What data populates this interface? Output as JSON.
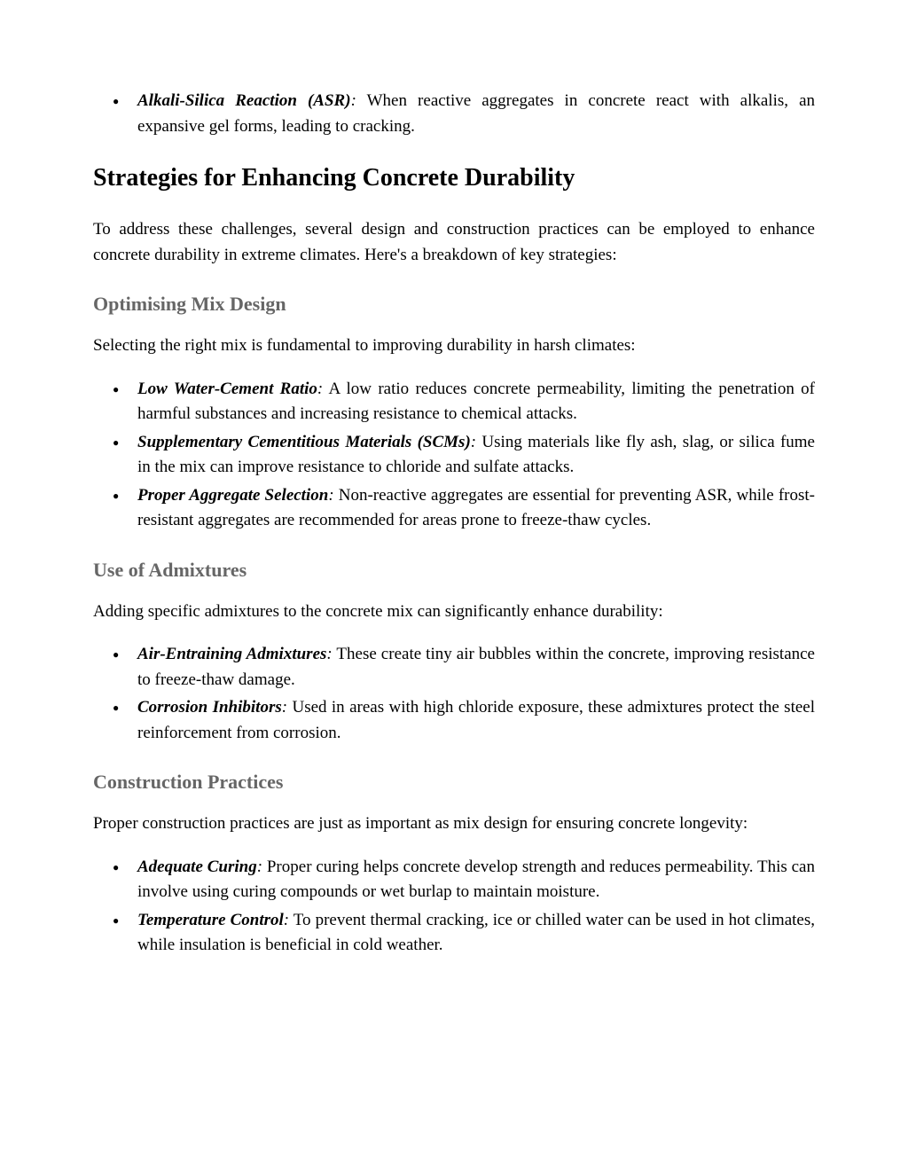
{
  "asr_item": {
    "term": "Alkali-Silica Reaction (ASR)",
    "text": " When reactive aggregates in concrete react with alkalis, an expansive gel forms, leading to cracking."
  },
  "h2": "Strategies for Enhancing Concrete Durability",
  "intro": "To address these challenges, several design and construction practices can be employed to enhance concrete durability in extreme climates. Here's a breakdown of key strategies:",
  "section1": {
    "heading": "Optimising Mix Design",
    "lead": "Selecting the right mix is fundamental to improving durability in harsh climates:",
    "items": [
      {
        "term": "Low Water-Cement Ratio",
        "text": " A low ratio reduces concrete permeability, limiting the penetration of harmful substances and increasing resistance to chemical attacks."
      },
      {
        "term": "Supplementary Cementitious Materials (SCMs)",
        "text": " Using materials like fly ash, slag, or silica fume in the mix can improve resistance to chloride and sulfate attacks."
      },
      {
        "term": "Proper Aggregate Selection",
        "text": " Non-reactive aggregates are essential for preventing ASR, while frost-resistant aggregates are recommended for areas prone to freeze-thaw cycles."
      }
    ]
  },
  "section2": {
    "heading": "Use of Admixtures",
    "lead": "Adding specific admixtures to the concrete mix can significantly enhance durability:",
    "items": [
      {
        "term": "Air-Entraining Admixtures",
        "text": " These create tiny air bubbles within the concrete, improving resistance to freeze-thaw damage."
      },
      {
        "term": "Corrosion Inhibitors",
        "text": " Used in areas with high chloride exposure, these admixtures protect the steel reinforcement from corrosion."
      }
    ]
  },
  "section3": {
    "heading": "Construction Practices",
    "lead": "Proper construction practices are just as important as mix design for ensuring concrete longevity:",
    "items": [
      {
        "term": "Adequate Curing",
        "text": " Proper curing helps concrete develop strength and reduces permeability. This can involve using curing compounds or wet burlap to maintain moisture."
      },
      {
        "term": "Temperature Control",
        "text": " To prevent thermal cracking, ice or chilled water can be used in hot climates, while insulation is beneficial in cold weather."
      }
    ]
  }
}
